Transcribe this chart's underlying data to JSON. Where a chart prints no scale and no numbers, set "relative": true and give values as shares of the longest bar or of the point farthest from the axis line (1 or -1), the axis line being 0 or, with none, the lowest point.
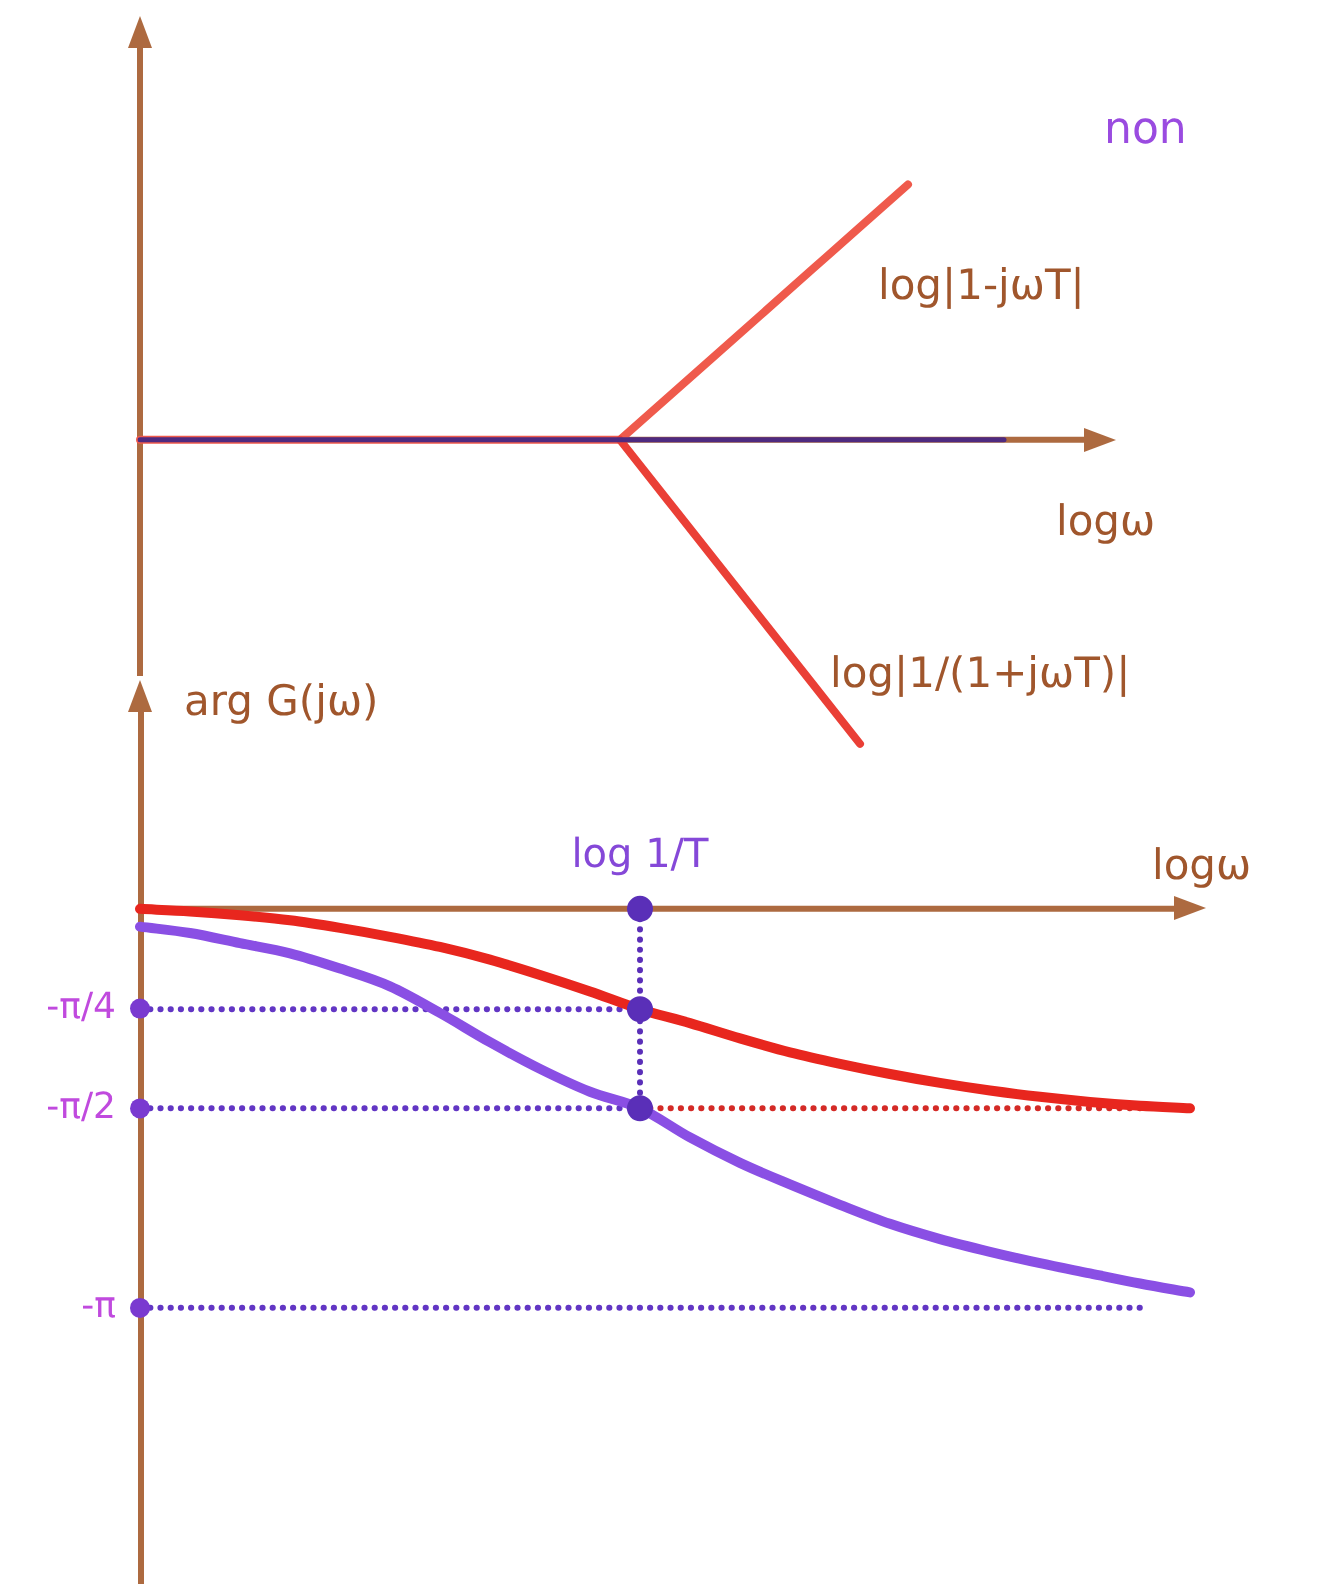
{
  "chart_data": [
    {
      "type": "line",
      "relative": true,
      "xlabel": "logω",
      "annotations": [
        "non"
      ],
      "marker": "none",
      "line_style": "solid",
      "categories": [
        null,
        null,
        null,
        null,
        null,
        null,
        null,
        null,
        null,
        null,
        null,
        null,
        null,
        null,
        null,
        null,
        null,
        null,
        null,
        null,
        null
      ],
      "ref_lines": [
        {
          "axis": "y",
          "value": 0,
          "color": "#ad6a40"
        }
      ],
      "series": [
        {
          "name": "log|1-jωT|",
          "color": "#ef5a4c",
          "values": [
            0,
            0,
            0,
            0,
            0,
            0,
            0,
            0,
            0,
            0,
            0,
            0.14,
            0.28,
            0.42,
            0.56,
            0.7,
            0.84,
            null,
            null,
            null,
            null
          ]
        },
        {
          "name": "log|1/(1+jωT)|",
          "color": "#ea3f36",
          "values": [
            null,
            null,
            null,
            null,
            null,
            null,
            null,
            null,
            null,
            null,
            0,
            -0.2,
            -0.4,
            -0.6,
            -0.8,
            -1,
            null,
            null,
            null,
            null,
            null
          ]
        },
        {
          "color": "#4e2a80",
          "values": [
            0,
            0,
            0,
            0,
            0,
            0,
            0,
            0,
            0,
            0,
            0,
            0,
            0,
            0,
            0,
            0,
            0,
            0,
            0,
            null,
            null
          ]
        }
      ]
    },
    {
      "type": "line",
      "xlabel": "logω",
      "ylabel": "arg G(jω)",
      "marker": "none",
      "line_style": "solid",
      "categories": [
        null,
        null,
        null,
        null,
        null,
        null,
        null,
        null,
        null,
        null,
        "log 1/T",
        null,
        null,
        null,
        null,
        null,
        null,
        null,
        null,
        null,
        null,
        null
      ],
      "ylim": [
        -5.3,
        1.55
      ],
      "yticks": [
        {
          "value": -0.785,
          "label": "-π/4"
        },
        {
          "value": -1.571,
          "label": "-π/2"
        },
        {
          "value": -3.142,
          "label": "-π"
        }
      ],
      "ref_lines": [
        {
          "axis": "y",
          "value": 0,
          "color": "#ad6a40"
        }
      ],
      "series": [
        {
          "type": "line",
          "color": "#6236c4",
          "line_style": "dotted",
          "values": [
            -0.79,
            -0.79,
            -0.79,
            -0.79,
            -0.79,
            -0.79,
            -0.79,
            -0.79,
            -0.79,
            -0.79,
            -0.79,
            null,
            null,
            null,
            null,
            null,
            null,
            null,
            null,
            null,
            null,
            null
          ]
        },
        {
          "type": "line",
          "color": "#6236c4",
          "line_style": "dotted",
          "values": [
            -1.57,
            -1.57,
            -1.57,
            -1.57,
            -1.57,
            -1.57,
            -1.57,
            -1.57,
            -1.57,
            -1.57,
            -1.57,
            null,
            null,
            null,
            null,
            null,
            null,
            null,
            null,
            null,
            null,
            null
          ]
        },
        {
          "type": "line",
          "color": "#d42a26",
          "line_style": "dotted",
          "values": [
            null,
            null,
            null,
            null,
            null,
            null,
            null,
            null,
            null,
            null,
            -1.57,
            -1.57,
            -1.57,
            -1.57,
            -1.57,
            -1.57,
            -1.57,
            -1.57,
            -1.57,
            -1.57,
            -1.57,
            null
          ]
        },
        {
          "type": "line",
          "color": "#6236c4",
          "line_style": "dotted",
          "values": [
            -3.14,
            -3.14,
            -3.14,
            -3.14,
            -3.14,
            -3.14,
            -3.14,
            -3.14,
            -3.14,
            -3.14,
            -3.14,
            -3.14,
            -3.14,
            -3.14,
            -3.14,
            -3.14,
            -3.14,
            -3.14,
            -3.14,
            -3.14,
            -3.14,
            null
          ]
        },
        {
          "type": "line",
          "color": "#e8261e",
          "values": [
            0,
            -0.02,
            -0.05,
            -0.09,
            -0.15,
            -0.22,
            -0.3,
            -0.4,
            -0.52,
            -0.65,
            -0.79,
            -0.9,
            -1.02,
            -1.13,
            -1.22,
            -1.3,
            -1.37,
            -1.43,
            -1.48,
            -1.52,
            -1.55,
            -1.57
          ]
        },
        {
          "type": "line",
          "color": "#8a4fe4",
          "values": [
            -0.14,
            -0.19,
            -0.27,
            -0.35,
            -0.47,
            -0.61,
            -0.82,
            -1.05,
            -1.26,
            -1.44,
            -1.57,
            -1.8,
            -2.0,
            -2.17,
            -2.33,
            -2.48,
            -2.6,
            -2.7,
            -2.79,
            -2.87,
            -2.95,
            -3.02
          ]
        },
        {
          "type": "line",
          "color": "#5a2fb8",
          "line_style": "dotted",
          "x": [
            "log 1/T",
            "log 1/T"
          ],
          "values": [
            0,
            -1.57
          ]
        },
        {
          "type": "scatter",
          "color": "#5a2fb8",
          "marker": "circle",
          "x": [
            "log 1/T",
            "log 1/T",
            "log 1/T"
          ],
          "values": [
            0,
            -0.79,
            -1.57
          ]
        }
      ]
    }
  ]
}
